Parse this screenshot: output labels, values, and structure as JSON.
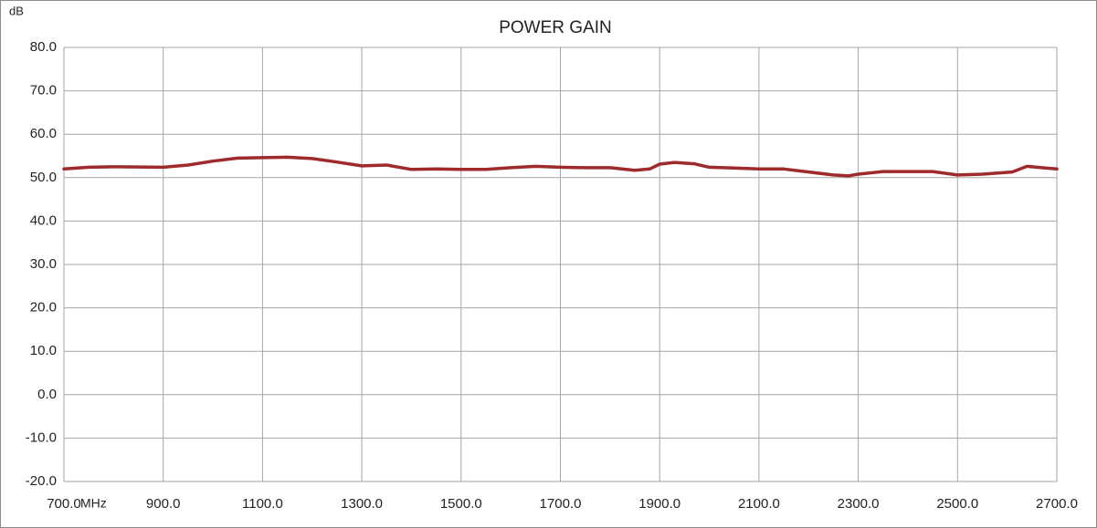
{
  "chart_data": {
    "type": "line",
    "title": "POWER GAIN",
    "y_label": "dB",
    "x_label": "MHz",
    "x": [
      700,
      750,
      800,
      900,
      950,
      1000,
      1050,
      1100,
      1150,
      1200,
      1250,
      1300,
      1350,
      1400,
      1450,
      1500,
      1550,
      1600,
      1650,
      1700,
      1750,
      1800,
      1850,
      1880,
      1900,
      1930,
      1970,
      2000,
      2050,
      2100,
      2150,
      2200,
      2250,
      2280,
      2300,
      2350,
      2400,
      2450,
      2500,
      2550,
      2610,
      2640,
      2670,
      2700
    ],
    "values": [
      52.0,
      52.4,
      52.5,
      52.4,
      52.9,
      53.8,
      54.5,
      54.6,
      54.7,
      54.4,
      53.6,
      52.7,
      52.9,
      51.9,
      52.0,
      51.9,
      51.9,
      52.3,
      52.6,
      52.4,
      52.3,
      52.3,
      51.7,
      52.0,
      53.1,
      53.5,
      53.2,
      52.4,
      52.2,
      52.0,
      52.0,
      51.3,
      50.6,
      50.4,
      50.8,
      51.4,
      51.4,
      51.4,
      50.6,
      50.8,
      51.3,
      52.6,
      52.3,
      52.0
    ],
    "color": "#9e2a2b",
    "grid": true,
    "xlim": [
      700,
      2700
    ],
    "xticks": [
      {
        "value": 700,
        "label": "700.0"
      },
      {
        "value": 900,
        "label": "900.0"
      },
      {
        "value": 1100,
        "label": "1100.0"
      },
      {
        "value": 1300,
        "label": "1300.0"
      },
      {
        "value": 1500,
        "label": "1500.0"
      },
      {
        "value": 1700,
        "label": "1700.0"
      },
      {
        "value": 1900,
        "label": "1900.0"
      },
      {
        "value": 2100,
        "label": "2100.0"
      },
      {
        "value": 2300,
        "label": "2300.0"
      },
      {
        "value": 2500,
        "label": "2500.0"
      },
      {
        "value": 2700,
        "label": "2700.0"
      }
    ],
    "ylim": [
      -20,
      80
    ],
    "yticks": [
      {
        "value": -20,
        "label": "-20.0"
      },
      {
        "value": -10,
        "label": "-10.0"
      },
      {
        "value": 0,
        "label": "0.0"
      },
      {
        "value": 10,
        "label": "10.0"
      },
      {
        "value": 20,
        "label": "20.0"
      },
      {
        "value": 30,
        "label": "30.0"
      },
      {
        "value": 40,
        "label": "40.0"
      },
      {
        "value": 50,
        "label": "50.0"
      },
      {
        "value": 60,
        "label": "60.0"
      },
      {
        "value": 70,
        "label": "70.0"
      },
      {
        "value": 80,
        "label": "80.0"
      }
    ]
  }
}
